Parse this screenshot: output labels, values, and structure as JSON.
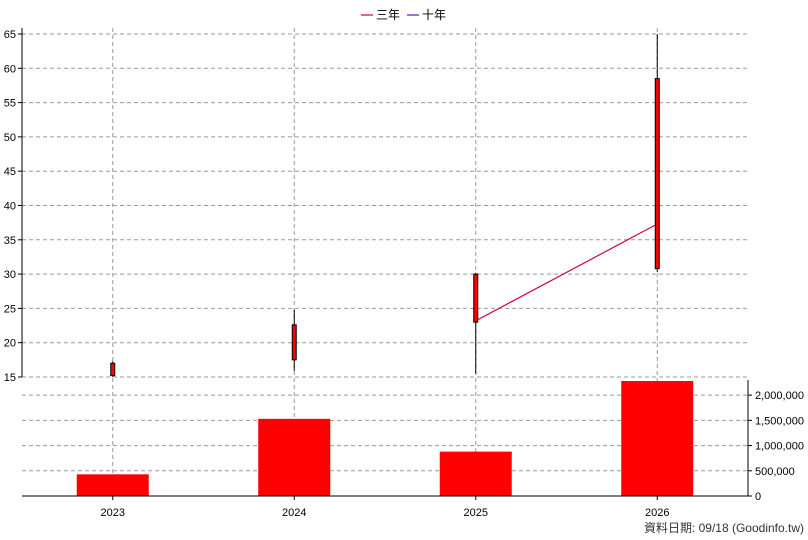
{
  "legend": [
    {
      "label": "三年",
      "color": "#cc0055"
    },
    {
      "label": "十年",
      "color": "#6a0dad"
    }
  ],
  "footer": {
    "text": "資料日期: 09/18  (Goodinfo.tw)"
  },
  "colors": {
    "candle_body": "#ff0000",
    "candle_edge": "#000000",
    "volume_bar": "#ff0000",
    "grid": "#999999"
  },
  "chart_data": {
    "type": "candlestick-with-volume",
    "categories": [
      "2023",
      "2024",
      "2025",
      "2026"
    ],
    "candles": [
      {
        "x": "2023",
        "open": 15.2,
        "high": 17.3,
        "low": 15.0,
        "close": 17.0
      },
      {
        "x": "2024",
        "open": 17.5,
        "high": 24.8,
        "low": 15.9,
        "close": 22.6
      },
      {
        "x": "2025",
        "open": 23.0,
        "high": 30.2,
        "low": 15.5,
        "close": 30.0
      },
      {
        "x": "2026",
        "open": 30.8,
        "high": 65.0,
        "low": 30.3,
        "close": 58.5
      }
    ],
    "three_year_line": {
      "name": "三年",
      "points": [
        {
          "x": "2025",
          "y": 23.2
        },
        {
          "x": "2026",
          "y": 37.3
        }
      ]
    },
    "volume": [
      430000,
      1530000,
      880000,
      2280000
    ],
    "price_axis": {
      "min": 15,
      "max": 65,
      "ticks": [
        15,
        20,
        25,
        30,
        35,
        40,
        45,
        50,
        55,
        60,
        65
      ]
    },
    "volume_axis": {
      "min": 0,
      "max": 2300000,
      "ticks": [
        0,
        500000,
        1000000,
        1500000,
        2000000
      ],
      "tick_labels": [
        "0",
        "500,000",
        "1,000,000",
        "1,500,000",
        "2,000,000"
      ]
    },
    "grid": true,
    "legend_position": "top-center"
  }
}
